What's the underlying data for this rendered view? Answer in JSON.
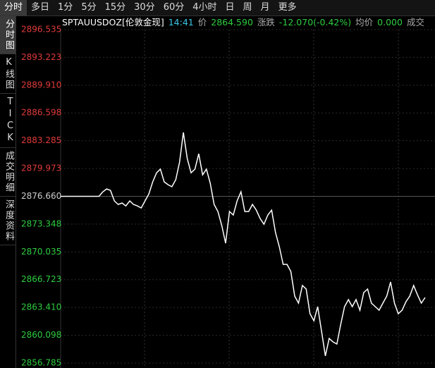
{
  "toolbar": {
    "tabs": [
      "分时",
      "多日",
      "1分",
      "5分",
      "15分",
      "30分",
      "60分",
      "4小时",
      "日",
      "周",
      "月",
      "更多"
    ]
  },
  "side_tabs": [
    "分时图",
    "K线图",
    "TICK",
    "成交明细",
    "深度资料"
  ],
  "header": {
    "symbol": "SPTAUUSDOZ[伦敦金现]",
    "time": "14:41",
    "price_label": "价",
    "price": "2864.590",
    "change_label": "涨跌",
    "change": "-12.070(-0.42%)",
    "avg_label": "均价",
    "avg": "0.000",
    "volume_label": "成交"
  },
  "chart_data": {
    "type": "line",
    "ylim": [
      2856.785,
      2896.535
    ],
    "baseline": 2876.66,
    "yticks": [
      {
        "value": 2896.535,
        "label": "2896.535"
      },
      {
        "value": 2893.223,
        "label": "2893.223"
      },
      {
        "value": 2889.91,
        "label": "2889.910"
      },
      {
        "value": 2886.598,
        "label": "2886.598"
      },
      {
        "value": 2883.285,
        "label": "2883.285"
      },
      {
        "value": 2879.973,
        "label": "2879.973"
      },
      {
        "value": 2876.66,
        "label": "2876.660"
      },
      {
        "value": 2873.348,
        "label": "2873.348"
      },
      {
        "value": 2870.035,
        "label": "2870.035"
      },
      {
        "value": 2866.723,
        "label": "2866.723"
      },
      {
        "value": 2863.41,
        "label": "2863.410"
      },
      {
        "value": 2860.098,
        "label": "2860.098"
      },
      {
        "value": 2856.785,
        "label": "2856.785"
      }
    ],
    "series": [
      {
        "color": "#ffffff",
        "values": [
          2876.66,
          2876.66,
          2876.66,
          2876.66,
          2876.66,
          2876.66,
          2876.66,
          2876.66,
          2876.66,
          2876.66,
          2876.66,
          2877.21,
          2877.54,
          2877.37,
          2876.11,
          2875.69,
          2875.86,
          2875.52,
          2876.11,
          2875.69,
          2875.52,
          2875.27,
          2876.11,
          2876.95,
          2878.38,
          2879.47,
          2879.9,
          2878.38,
          2878.05,
          2877.8,
          2878.64,
          2880.74,
          2884.27,
          2881.16,
          2879.47,
          2879.9,
          2881.74,
          2879.22,
          2879.9,
          2878.22,
          2875.69,
          2874.85,
          2873.17,
          2871.07,
          2874.85,
          2874.43,
          2876.11,
          2877.21,
          2874.85,
          2874.85,
          2875.69,
          2875.02,
          2874.01,
          2873.34,
          2874.43,
          2875.02,
          2872.33,
          2870.65,
          2868.55,
          2868.55,
          2867.71,
          2864.77,
          2863.93,
          2866.03,
          2865.61,
          2862.67,
          2861.83,
          2863.51,
          2860.57,
          2857.63,
          2859.72,
          2859.31,
          2859.05,
          2861.41,
          2863.51,
          2864.35,
          2863.51,
          2864.35,
          2863.09,
          2865.19,
          2865.61,
          2863.93,
          2863.51,
          2863.09,
          2863.93,
          2864.77,
          2866.45,
          2863.93,
          2862.67,
          2863.09,
          2864.1,
          2864.77,
          2866.03,
          2864.93,
          2863.93,
          2864.6
        ]
      }
    ]
  }
}
